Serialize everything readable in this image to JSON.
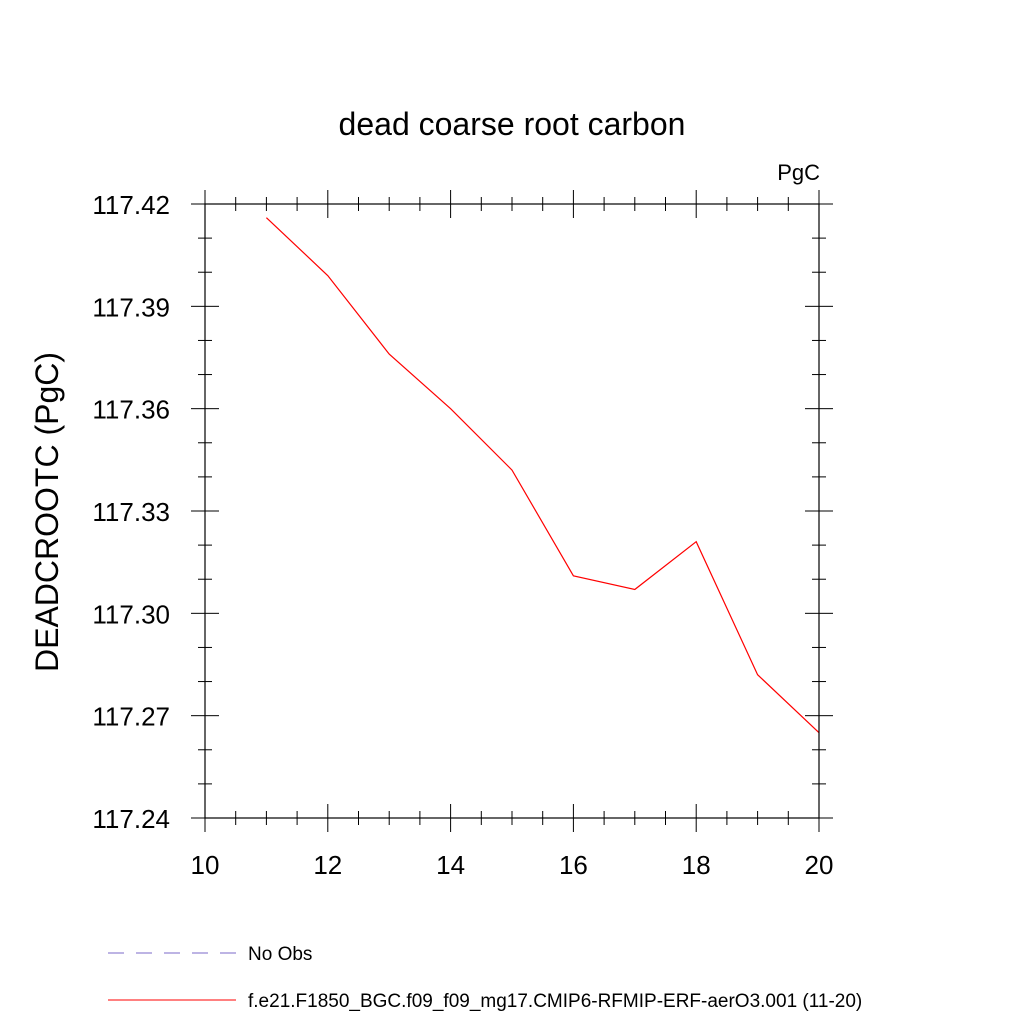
{
  "chart_data": {
    "type": "line",
    "title": "dead coarse root carbon",
    "units": "PgC",
    "xlabel": "",
    "ylabel": "DEADCROOTC  (PgC)",
    "xlim": [
      10,
      20
    ],
    "ylim": [
      117.24,
      117.42
    ],
    "xticks": [
      10,
      12,
      14,
      16,
      18,
      20
    ],
    "xtick_labels": [
      "10",
      "12",
      "14",
      "16",
      "18",
      "20"
    ],
    "yticks": [
      117.24,
      117.27,
      117.3,
      117.33,
      117.36,
      117.39,
      117.42
    ],
    "ytick_labels": [
      "117.24",
      "117.27",
      "117.30",
      "117.33",
      "117.36",
      "117.39",
      "117.42"
    ],
    "grid": false,
    "legend_position": "bottom",
    "series": [
      {
        "name": "f.e21.F1850_BGC.f09_f09_mg17.CMIP6-RFMIP-ERF-aerO3.001 (11-20)",
        "color": "#ff0000",
        "style": "solid",
        "x": [
          11,
          12,
          13,
          14,
          15,
          16,
          17,
          18,
          19,
          20
        ],
        "y": [
          117.416,
          117.399,
          117.376,
          117.36,
          117.342,
          117.311,
          117.307,
          117.321,
          117.282,
          117.265
        ]
      },
      {
        "name": "No Obs",
        "color": "#7b68c8",
        "style": "dashed",
        "x": [],
        "y": []
      }
    ]
  }
}
